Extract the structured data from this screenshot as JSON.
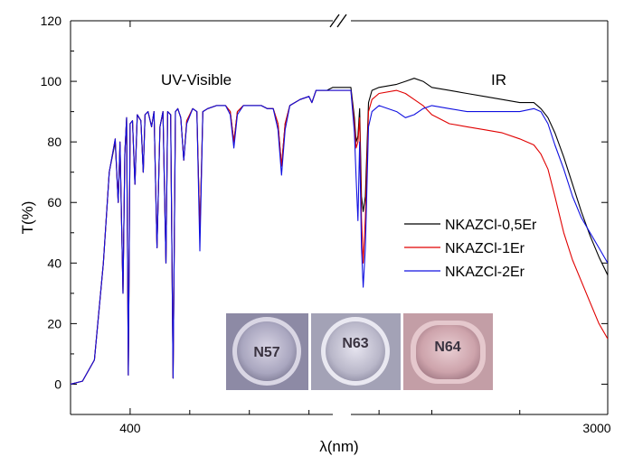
{
  "chart_data": {
    "type": "line",
    "ylabel": "T(%)",
    "xlabel": "λ(nm)",
    "ylim": [
      -10,
      120
    ],
    "y_ticks": [
      0,
      20,
      40,
      60,
      80,
      100,
      120
    ],
    "x_ticks": [
      {
        "x": 400,
        "label": "400"
      },
      {
        "x": 3000,
        "label": "3000"
      }
    ],
    "axis_break": "//",
    "annotations": [
      "UV-Visible",
      "IR"
    ],
    "grid": false,
    "legend_position": "center-right",
    "series": [
      {
        "name": "NKAZCl-0,5Er",
        "color": "#000000",
        "points": [
          [
            300,
            0
          ],
          [
            320,
            1
          ],
          [
            340,
            8
          ],
          [
            355,
            40
          ],
          [
            365,
            70
          ],
          [
            375,
            80
          ],
          [
            380,
            60
          ],
          [
            383,
            79
          ],
          [
            388,
            30
          ],
          [
            391,
            76
          ],
          [
            394,
            88
          ],
          [
            397,
            3
          ],
          [
            400,
            86
          ],
          [
            404,
            87
          ],
          [
            408,
            66
          ],
          [
            412,
            89
          ],
          [
            418,
            87
          ],
          [
            422,
            70
          ],
          [
            425,
            89
          ],
          [
            430,
            90
          ],
          [
            436,
            85
          ],
          [
            440,
            90
          ],
          [
            445,
            45
          ],
          [
            450,
            85
          ],
          [
            455,
            90
          ],
          [
            460,
            40
          ],
          [
            463,
            90
          ],
          [
            468,
            89
          ],
          [
            472,
            2
          ],
          [
            476,
            90
          ],
          [
            480,
            91
          ],
          [
            485,
            88
          ],
          [
            490,
            74
          ],
          [
            495,
            87
          ],
          [
            505,
            91
          ],
          [
            512,
            90
          ],
          [
            517,
            50
          ],
          [
            522,
            90
          ],
          [
            530,
            91
          ],
          [
            545,
            92
          ],
          [
            560,
            92
          ],
          [
            568,
            90
          ],
          [
            574,
            80
          ],
          [
            580,
            90
          ],
          [
            590,
            92
          ],
          [
            605,
            92
          ],
          [
            620,
            92
          ],
          [
            630,
            91
          ],
          [
            640,
            91
          ],
          [
            648,
            86
          ],
          [
            654,
            72
          ],
          [
            660,
            86
          ],
          [
            668,
            92
          ],
          [
            685,
            94
          ],
          [
            700,
            95
          ],
          [
            705,
            93
          ],
          [
            712,
            97
          ],
          [
            730,
            97
          ],
          [
            740,
            98
          ],
          [
            1540,
            98
          ],
          [
            1560,
            88
          ],
          [
            1570,
            80
          ],
          [
            1580,
            82
          ],
          [
            1590,
            91
          ],
          [
            1600,
            62
          ],
          [
            1610,
            57
          ],
          [
            1622,
            62
          ],
          [
            1640,
            93
          ],
          [
            1660,
            97
          ],
          [
            1700,
            98
          ],
          [
            1800,
            99
          ],
          [
            1850,
            100
          ],
          [
            1900,
            101
          ],
          [
            1950,
            100
          ],
          [
            2000,
            98
          ],
          [
            2100,
            97
          ],
          [
            2200,
            96
          ],
          [
            2300,
            95
          ],
          [
            2400,
            94
          ],
          [
            2500,
            93
          ],
          [
            2580,
            93
          ],
          [
            2620,
            91
          ],
          [
            2660,
            88
          ],
          [
            2700,
            83
          ],
          [
            2750,
            75
          ],
          [
            2800,
            66
          ],
          [
            2850,
            57
          ],
          [
            2900,
            49
          ],
          [
            2950,
            42
          ],
          [
            3000,
            36
          ]
        ]
      },
      {
        "name": "NKAZCl-1Er",
        "color": "#e00000",
        "points": [
          [
            300,
            0
          ],
          [
            320,
            1
          ],
          [
            340,
            8
          ],
          [
            355,
            40
          ],
          [
            365,
            70
          ],
          [
            375,
            81
          ],
          [
            380,
            60
          ],
          [
            383,
            80
          ],
          [
            388,
            30
          ],
          [
            391,
            76
          ],
          [
            394,
            88
          ],
          [
            397,
            3
          ],
          [
            400,
            86
          ],
          [
            404,
            87
          ],
          [
            408,
            66
          ],
          [
            412,
            89
          ],
          [
            418,
            87
          ],
          [
            422,
            70
          ],
          [
            425,
            89
          ],
          [
            430,
            90
          ],
          [
            436,
            85
          ],
          [
            440,
            90
          ],
          [
            445,
            45
          ],
          [
            450,
            85
          ],
          [
            455,
            90
          ],
          [
            460,
            40
          ],
          [
            463,
            90
          ],
          [
            468,
            89
          ],
          [
            472,
            2
          ],
          [
            476,
            90
          ],
          [
            480,
            91
          ],
          [
            485,
            88
          ],
          [
            490,
            74
          ],
          [
            495,
            87
          ],
          [
            505,
            91
          ],
          [
            512,
            90
          ],
          [
            517,
            50
          ],
          [
            522,
            90
          ],
          [
            530,
            91
          ],
          [
            545,
            92
          ],
          [
            560,
            92
          ],
          [
            568,
            90
          ],
          [
            574,
            80
          ],
          [
            580,
            90
          ],
          [
            590,
            92
          ],
          [
            605,
            92
          ],
          [
            620,
            92
          ],
          [
            630,
            91
          ],
          [
            640,
            91
          ],
          [
            648,
            86
          ],
          [
            654,
            72
          ],
          [
            660,
            86
          ],
          [
            668,
            92
          ],
          [
            685,
            94
          ],
          [
            700,
            95
          ],
          [
            705,
            93
          ],
          [
            712,
            97
          ],
          [
            730,
            97
          ],
          [
            740,
            97
          ],
          [
            1540,
            97
          ],
          [
            1560,
            86
          ],
          [
            1570,
            78
          ],
          [
            1580,
            80
          ],
          [
            1590,
            88
          ],
          [
            1600,
            55
          ],
          [
            1610,
            40
          ],
          [
            1622,
            55
          ],
          [
            1640,
            90
          ],
          [
            1660,
            94
          ],
          [
            1700,
            96
          ],
          [
            1800,
            97
          ],
          [
            1850,
            96
          ],
          [
            1900,
            94
          ],
          [
            1950,
            92
          ],
          [
            2000,
            89
          ],
          [
            2100,
            86
          ],
          [
            2200,
            85
          ],
          [
            2300,
            84
          ],
          [
            2400,
            83
          ],
          [
            2500,
            81
          ],
          [
            2580,
            79
          ],
          [
            2620,
            76
          ],
          [
            2660,
            71
          ],
          [
            2700,
            62
          ],
          [
            2750,
            50
          ],
          [
            2800,
            41
          ],
          [
            2850,
            34
          ],
          [
            2900,
            27
          ],
          [
            2950,
            20
          ],
          [
            3000,
            15
          ]
        ]
      },
      {
        "name": "NKAZCl-2Er",
        "color": "#1010e0",
        "points": [
          [
            300,
            0
          ],
          [
            320,
            1
          ],
          [
            340,
            8
          ],
          [
            355,
            40
          ],
          [
            365,
            70
          ],
          [
            375,
            81
          ],
          [
            380,
            60
          ],
          [
            383,
            80
          ],
          [
            388,
            30
          ],
          [
            391,
            76
          ],
          [
            394,
            88
          ],
          [
            397,
            3
          ],
          [
            400,
            86
          ],
          [
            404,
            87
          ],
          [
            408,
            66
          ],
          [
            412,
            89
          ],
          [
            418,
            87
          ],
          [
            422,
            70
          ],
          [
            425,
            89
          ],
          [
            430,
            90
          ],
          [
            436,
            85
          ],
          [
            440,
            90
          ],
          [
            445,
            45
          ],
          [
            450,
            85
          ],
          [
            455,
            90
          ],
          [
            460,
            40
          ],
          [
            463,
            90
          ],
          [
            468,
            89
          ],
          [
            472,
            2
          ],
          [
            476,
            90
          ],
          [
            480,
            91
          ],
          [
            485,
            88
          ],
          [
            490,
            74
          ],
          [
            495,
            86
          ],
          [
            505,
            91
          ],
          [
            512,
            90
          ],
          [
            517,
            44
          ],
          [
            522,
            90
          ],
          [
            530,
            91
          ],
          [
            545,
            92
          ],
          [
            560,
            92
          ],
          [
            568,
            89
          ],
          [
            574,
            78
          ],
          [
            580,
            89
          ],
          [
            590,
            92
          ],
          [
            605,
            92
          ],
          [
            620,
            92
          ],
          [
            630,
            91
          ],
          [
            640,
            91
          ],
          [
            648,
            84
          ],
          [
            654,
            69
          ],
          [
            660,
            84
          ],
          [
            668,
            92
          ],
          [
            685,
            94
          ],
          [
            700,
            95
          ],
          [
            705,
            93
          ],
          [
            712,
            97
          ],
          [
            730,
            97
          ],
          [
            740,
            97
          ],
          [
            1540,
            97
          ],
          [
            1560,
            83
          ],
          [
            1570,
            68
          ],
          [
            1580,
            54
          ],
          [
            1590,
            80
          ],
          [
            1600,
            45
          ],
          [
            1610,
            32
          ],
          [
            1622,
            45
          ],
          [
            1640,
            85
          ],
          [
            1660,
            90
          ],
          [
            1700,
            92
          ],
          [
            1800,
            90
          ],
          [
            1850,
            88
          ],
          [
            1900,
            89
          ],
          [
            1950,
            91
          ],
          [
            2000,
            92
          ],
          [
            2100,
            91
          ],
          [
            2200,
            90
          ],
          [
            2300,
            90
          ],
          [
            2400,
            90
          ],
          [
            2500,
            90
          ],
          [
            2580,
            91
          ],
          [
            2620,
            90
          ],
          [
            2660,
            86
          ],
          [
            2700,
            79
          ],
          [
            2750,
            71
          ],
          [
            2800,
            62
          ],
          [
            2850,
            55
          ],
          [
            2900,
            50
          ],
          [
            2950,
            45
          ],
          [
            3000,
            40
          ]
        ]
      }
    ]
  },
  "samples": [
    {
      "label": "N57",
      "fill": "#8a87a3"
    },
    {
      "label": "N63",
      "fill": "#9d9cb2"
    },
    {
      "label": "N64",
      "fill": "#b88f9a"
    }
  ]
}
